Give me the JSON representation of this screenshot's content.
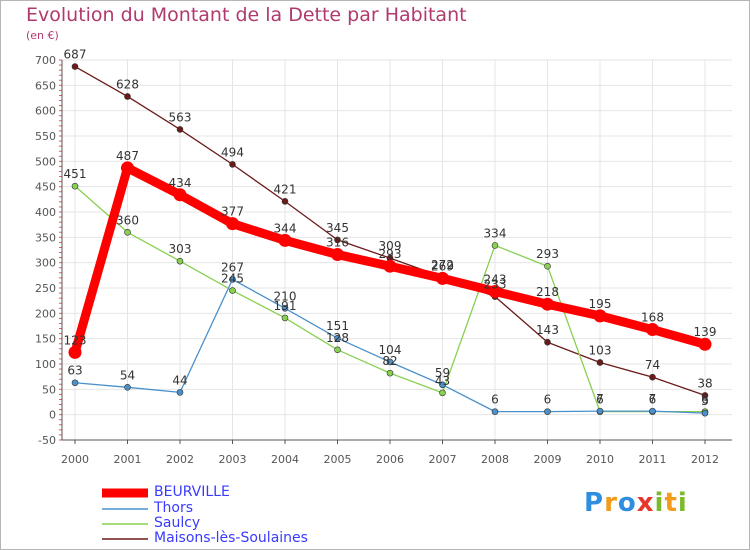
{
  "title": "Evolution du Montant de la Dette par Habitant",
  "unit_label": "(en €)",
  "logo": {
    "text": "Proxiti",
    "letters": [
      {
        "ch": "P",
        "color": "#2f8ee0"
      },
      {
        "ch": "r",
        "color": "#f39c1b"
      },
      {
        "ch": "o",
        "color": "#2f8ee0"
      },
      {
        "ch": "x",
        "color": "#e8372a"
      },
      {
        "ch": "i",
        "color": "#7dbb2c"
      },
      {
        "ch": "t",
        "color": "#f39c1b"
      },
      {
        "ch": "i",
        "color": "#7dbb2c"
      }
    ]
  },
  "colors": {
    "title": "#b03a6e",
    "axis": "#555555",
    "grid": "#e5e5e5",
    "legend_text": "#3a3aff"
  },
  "chart_data": {
    "type": "line",
    "title": "Evolution du Montant de la Dette par Habitant",
    "ylabel": "(en €)",
    "xlabel": "",
    "x": [
      "2000",
      "2001",
      "2002",
      "2003",
      "2004",
      "2005",
      "2006",
      "2007",
      "2008",
      "2009",
      "2010",
      "2011",
      "2012"
    ],
    "ylim": [
      -50,
      700
    ],
    "yticks": [
      -50,
      0,
      50,
      100,
      150,
      200,
      250,
      300,
      350,
      400,
      450,
      500,
      550,
      600,
      650,
      700
    ],
    "grid": true,
    "legend_position": "bottom-left",
    "series": [
      {
        "name": "BEURVILLE",
        "color": "#ff0000",
        "values": [
          123,
          487,
          434,
          377,
          344,
          316,
          293,
          269,
          243,
          218,
          195,
          168,
          139
        ],
        "labels": [
          "123",
          "487",
          "434",
          "377",
          "344",
          "316",
          "293",
          "269",
          "243",
          "218",
          "195",
          "168",
          "139"
        ]
      },
      {
        "name": "Thors",
        "color": "#4a90cc",
        "values": [
          63,
          54,
          44,
          267,
          210,
          151,
          104,
          59,
          6,
          6,
          7,
          7,
          3
        ],
        "labels": [
          "63",
          "54",
          "44",
          "267",
          "210",
          "151",
          "104",
          "59",
          "6",
          "6",
          "7",
          "7",
          "3"
        ]
      },
      {
        "name": "Saulcy",
        "color": "#88d050",
        "values": [
          451,
          360,
          303,
          245,
          191,
          128,
          82,
          43,
          334,
          293,
          6,
          6,
          6
        ],
        "labels": [
          "451",
          "360",
          "303",
          "245",
          "191",
          "128",
          "82",
          "43",
          "334",
          "293",
          "6",
          "6",
          "6"
        ]
      },
      {
        "name": "Maisons-lès-Soulaines",
        "color": "#6b1a1a",
        "values": [
          687,
          628,
          563,
          494,
          421,
          345,
          309,
          272,
          233,
          143,
          103,
          74,
          38
        ],
        "labels": [
          "687",
          "628",
          "563",
          "494",
          "421",
          "345",
          "309",
          "272",
          "233",
          "143",
          "103",
          "74",
          "38"
        ]
      }
    ]
  }
}
